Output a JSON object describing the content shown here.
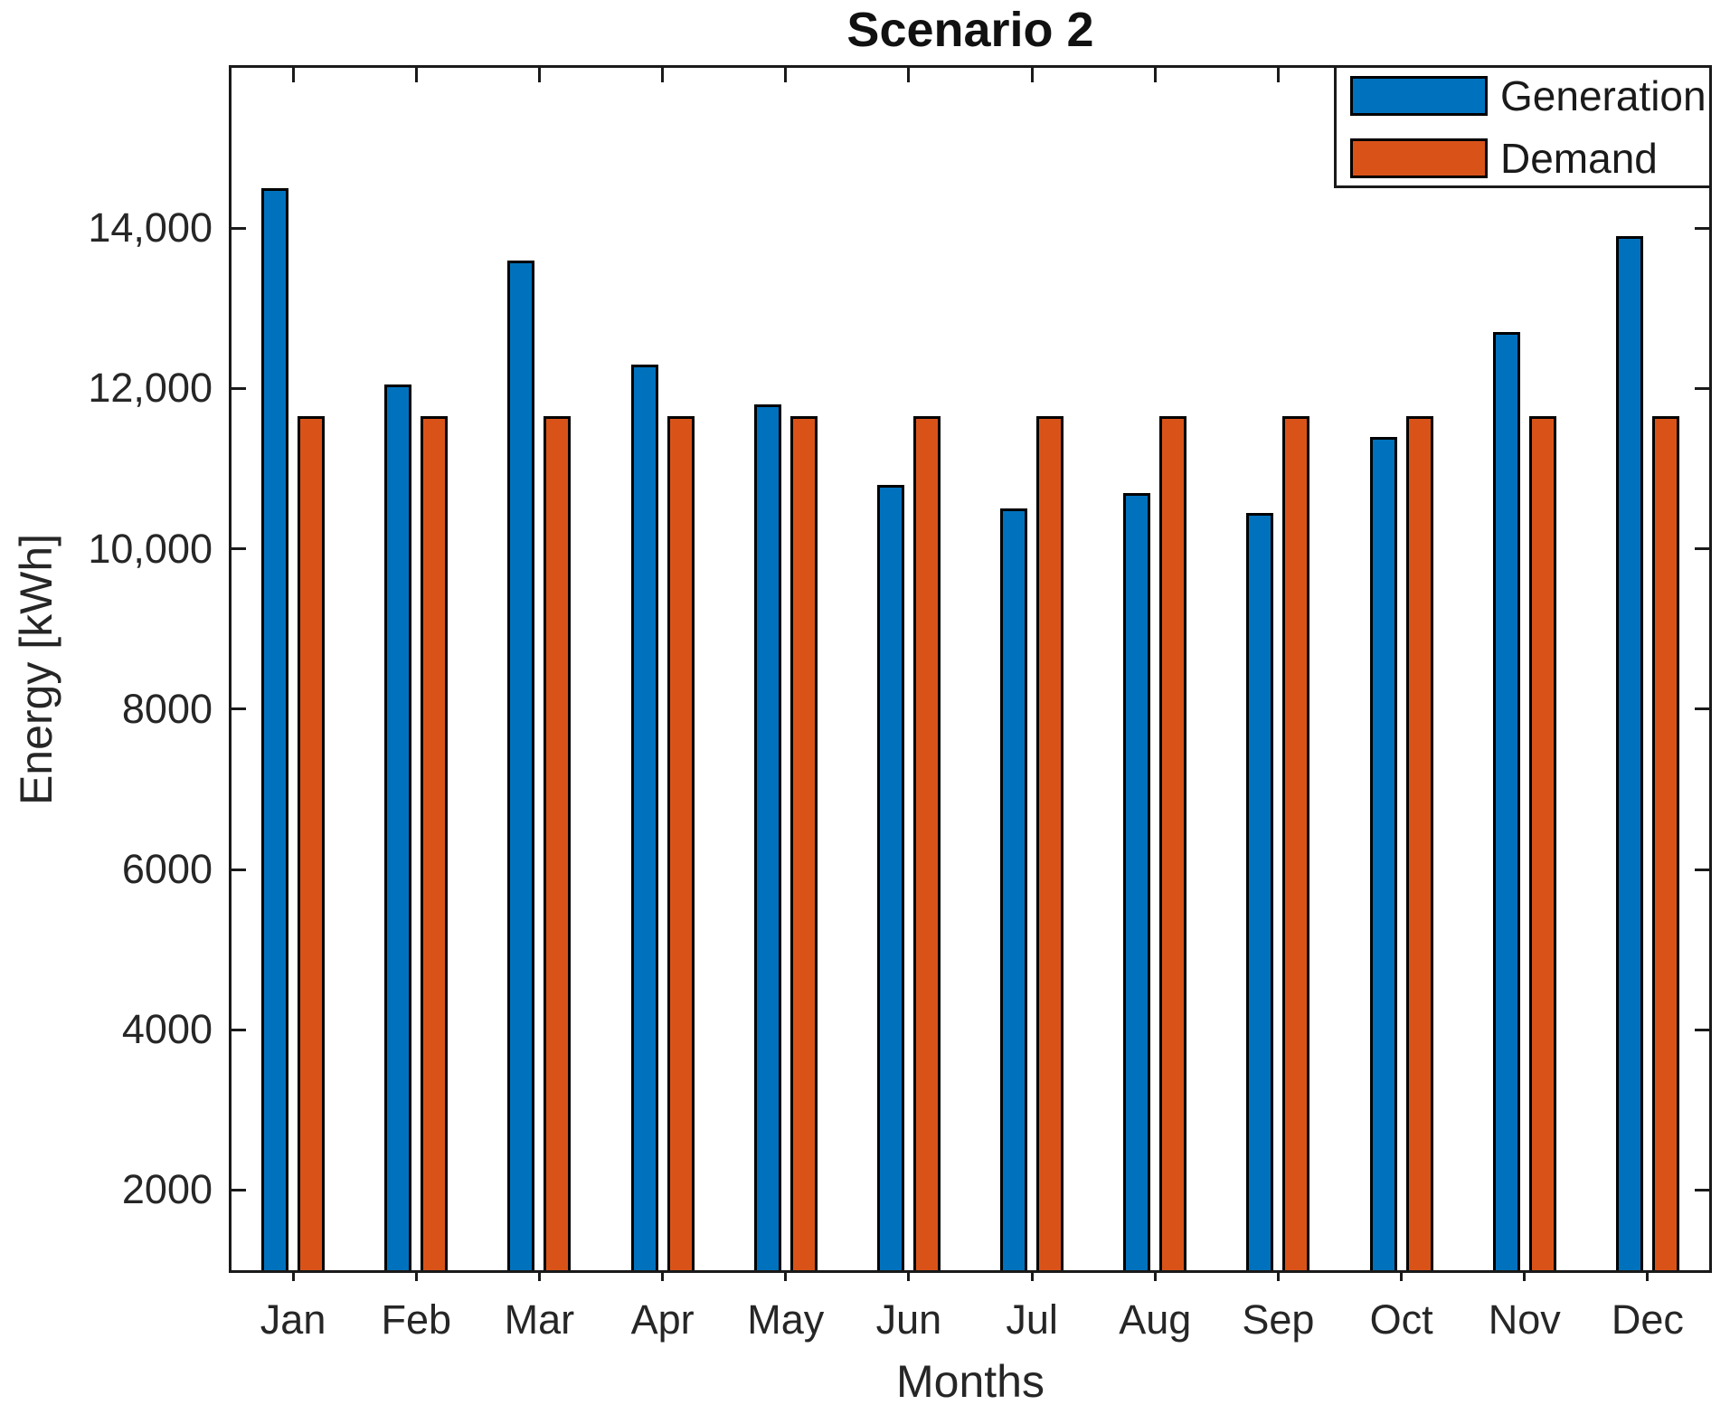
{
  "chart_data": {
    "type": "bar",
    "title": "Scenario 2",
    "xlabel": "Months",
    "ylabel": "Energy [kWh]",
    "categories": [
      "Jan",
      "Feb",
      "Mar",
      "Apr",
      "May",
      "Jun",
      "Jul",
      "Aug",
      "Sep",
      "Oct",
      "Nov",
      "Dec"
    ],
    "series": [
      {
        "name": "Generation",
        "color": "#0072BD",
        "values": [
          14500,
          12050,
          13600,
          12300,
          11800,
          10800,
          10500,
          10700,
          10450,
          11400,
          12700,
          13900
        ]
      },
      {
        "name": "Demand",
        "color": "#D95319",
        "values": [
          11650,
          11650,
          11650,
          11650,
          11650,
          11650,
          11650,
          11650,
          11650,
          11650,
          11650,
          11650
        ]
      }
    ],
    "ylim": [
      1000,
      16000
    ],
    "yticks": [
      2000,
      4000,
      6000,
      8000,
      10000,
      12000,
      14000
    ],
    "ytick_labels": [
      "2000",
      "4000",
      "6000",
      "8000",
      "10,000",
      "12,000",
      "14,000"
    ],
    "grid": false,
    "legend_position": "northeast",
    "bar_edge_color": "#000000",
    "axis_color": "#1a1a1a"
  },
  "legend": {
    "items": [
      {
        "label": "Generation",
        "color": "#0072BD"
      },
      {
        "label": "Demand",
        "color": "#D95319"
      }
    ]
  }
}
